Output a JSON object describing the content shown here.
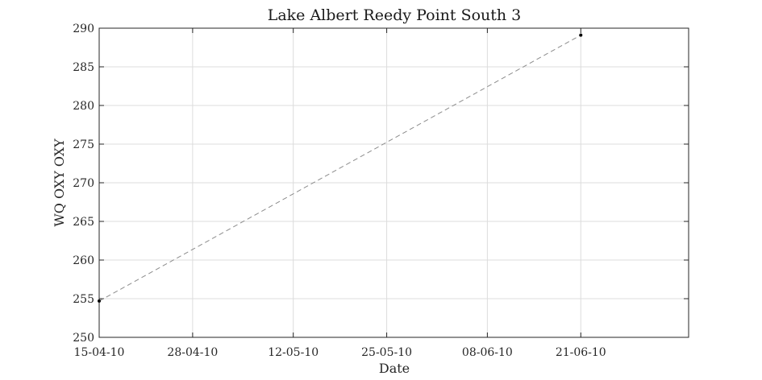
{
  "chart_data": {
    "type": "line",
    "title": "Lake Albert Reedy Point South 3",
    "xlabel": "Date",
    "ylabel": "WQ OXY OXY",
    "ylim": [
      250,
      290
    ],
    "yticks": [
      250,
      255,
      260,
      265,
      270,
      275,
      280,
      285,
      290
    ],
    "xlim": [
      "2010-04-15",
      "2010-07-06"
    ],
    "xticks": [
      {
        "date": "2010-04-15",
        "label": "15-04-10"
      },
      {
        "date": "2010-04-28",
        "label": "28-04-10"
      },
      {
        "date": "2010-05-12",
        "label": "12-05-10"
      },
      {
        "date": "2010-05-25",
        "label": "25-05-10"
      },
      {
        "date": "2010-06-08",
        "label": "08-06-10"
      },
      {
        "date": "2010-06-21",
        "label": "21-06-10"
      }
    ],
    "grid": true,
    "series": [
      {
        "x": [
          "2010-04-15",
          "2010-06-21"
        ],
        "values": [
          254.7,
          289.1
        ],
        "color": "#8c8c8c",
        "line_style": "dashed",
        "marker_color": "#000000"
      }
    ]
  }
}
